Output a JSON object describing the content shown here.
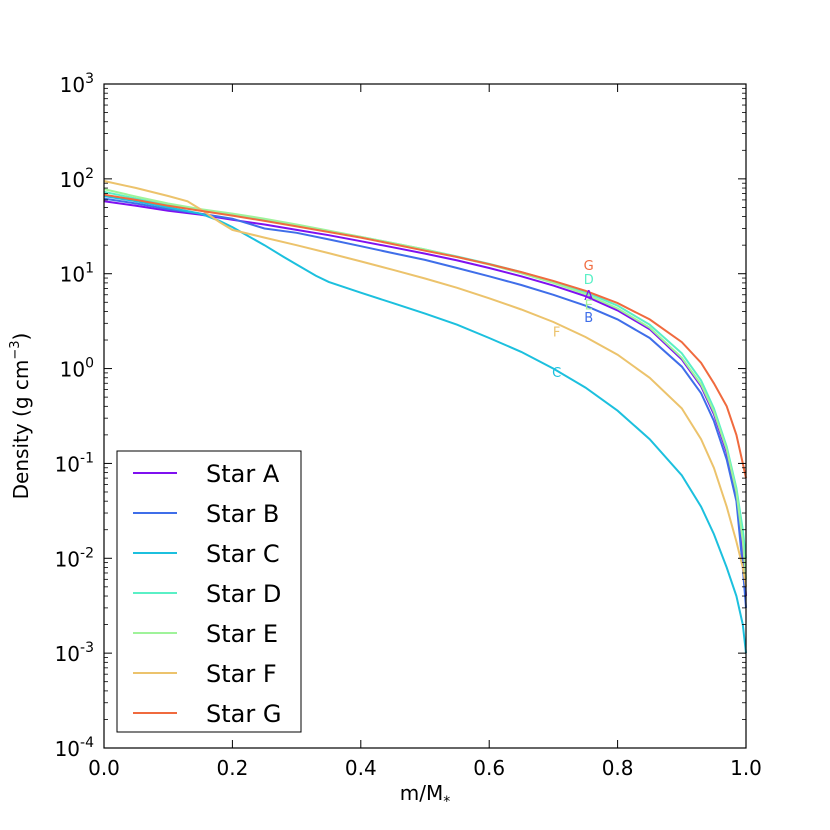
{
  "chart_data": {
    "type": "line",
    "xlabel": "m/M",
    "xlabel_sub": "*",
    "ylabel": "Density (g cm",
    "ylabel_sup": "−3",
    "ylabel_close": ")",
    "x_ticks": [
      "0.0",
      "0.2",
      "0.4",
      "0.6",
      "0.8",
      "1.0"
    ],
    "y_ticks": [
      {
        "base": "10",
        "exp": "-4"
      },
      {
        "base": "10",
        "exp": "-3"
      },
      {
        "base": "10",
        "exp": "-2"
      },
      {
        "base": "10",
        "exp": "-1"
      },
      {
        "base": "10",
        "exp": "0"
      },
      {
        "base": "10",
        "exp": "1"
      },
      {
        "base": "10",
        "exp": "2"
      },
      {
        "base": "10",
        "exp": "3"
      }
    ],
    "xlim": [
      0,
      1
    ],
    "ylim": [
      0.0001,
      1000
    ],
    "yscale": "log",
    "grid": false,
    "legend_position": "bottom-left",
    "series": [
      {
        "name": "Star A",
        "label": "A",
        "color": "#7f10f0",
        "label_at": [
          0.755,
          5.8
        ],
        "points": [
          [
            0,
            58
          ],
          [
            0.05,
            52
          ],
          [
            0.1,
            46
          ],
          [
            0.15,
            42
          ],
          [
            0.2,
            37
          ],
          [
            0.25,
            33
          ],
          [
            0.3,
            29
          ],
          [
            0.35,
            25.5
          ],
          [
            0.4,
            22
          ],
          [
            0.45,
            19
          ],
          [
            0.5,
            16.3
          ],
          [
            0.55,
            13.8
          ],
          [
            0.6,
            11.5
          ],
          [
            0.65,
            9.4
          ],
          [
            0.7,
            7.5
          ],
          [
            0.75,
            5.8
          ],
          [
            0.8,
            4.1
          ],
          [
            0.85,
            2.6
          ],
          [
            0.9,
            1.25
          ],
          [
            0.93,
            0.65
          ],
          [
            0.95,
            0.33
          ],
          [
            0.97,
            0.13
          ],
          [
            0.985,
            0.045
          ],
          [
            0.995,
            0.01
          ],
          [
            1.0,
            0.004
          ]
        ]
      },
      {
        "name": "Star B",
        "label": "B",
        "color": "#3f6ee9",
        "label_at": [
          0.755,
          3.4
        ],
        "points": [
          [
            0,
            62
          ],
          [
            0.05,
            55
          ],
          [
            0.1,
            48
          ],
          [
            0.15,
            43
          ],
          [
            0.2,
            38
          ],
          [
            0.25,
            30
          ],
          [
            0.3,
            27
          ],
          [
            0.35,
            23
          ],
          [
            0.4,
            19.5
          ],
          [
            0.45,
            16.5
          ],
          [
            0.5,
            14
          ],
          [
            0.55,
            11.5
          ],
          [
            0.6,
            9.4
          ],
          [
            0.65,
            7.6
          ],
          [
            0.7,
            6
          ],
          [
            0.75,
            4.6
          ],
          [
            0.8,
            3.3
          ],
          [
            0.85,
            2.1
          ],
          [
            0.9,
            1.05
          ],
          [
            0.93,
            0.55
          ],
          [
            0.95,
            0.28
          ],
          [
            0.97,
            0.11
          ],
          [
            0.985,
            0.04
          ],
          [
            0.995,
            0.008
          ],
          [
            1.0,
            0.003
          ]
        ]
      },
      {
        "name": "Star C",
        "label": "C",
        "color": "#1cc0de",
        "label_at": [
          0.705,
          0.9
        ],
        "points": [
          [
            0,
            66
          ],
          [
            0.05,
            58
          ],
          [
            0.1,
            50
          ],
          [
            0.15,
            43
          ],
          [
            0.18,
            36
          ],
          [
            0.2,
            31
          ],
          [
            0.22,
            26
          ],
          [
            0.25,
            20
          ],
          [
            0.28,
            15
          ],
          [
            0.3,
            12.5
          ],
          [
            0.33,
            9.5
          ],
          [
            0.35,
            8.2
          ],
          [
            0.4,
            6.3
          ],
          [
            0.45,
            4.9
          ],
          [
            0.5,
            3.8
          ],
          [
            0.55,
            2.9
          ],
          [
            0.6,
            2.1
          ],
          [
            0.65,
            1.5
          ],
          [
            0.7,
            1.0
          ],
          [
            0.75,
            0.63
          ],
          [
            0.8,
            0.36
          ],
          [
            0.85,
            0.18
          ],
          [
            0.9,
            0.075
          ],
          [
            0.93,
            0.035
          ],
          [
            0.95,
            0.018
          ],
          [
            0.97,
            0.008
          ],
          [
            0.985,
            0.004
          ],
          [
            0.995,
            0.002
          ],
          [
            1.0,
            0.001
          ]
        ]
      },
      {
        "name": "Star D",
        "label": "D",
        "color": "#5af0c6",
        "label_at": [
          0.755,
          8.6
        ],
        "points": [
          [
            0,
            73
          ],
          [
            0.05,
            62
          ],
          [
            0.1,
            53
          ],
          [
            0.15,
            47
          ],
          [
            0.2,
            42
          ],
          [
            0.25,
            37
          ],
          [
            0.3,
            32
          ],
          [
            0.35,
            28
          ],
          [
            0.4,
            24.5
          ],
          [
            0.45,
            21
          ],
          [
            0.5,
            18
          ],
          [
            0.55,
            15.2
          ],
          [
            0.6,
            12.7
          ],
          [
            0.65,
            10.4
          ],
          [
            0.7,
            8.3
          ],
          [
            0.75,
            6.4
          ],
          [
            0.8,
            4.6
          ],
          [
            0.85,
            2.9
          ],
          [
            0.9,
            1.45
          ],
          [
            0.93,
            0.75
          ],
          [
            0.95,
            0.38
          ],
          [
            0.97,
            0.15
          ],
          [
            0.985,
            0.055
          ],
          [
            0.995,
            0.02
          ],
          [
            1.0,
            0.01
          ]
        ]
      },
      {
        "name": "Star E",
        "label": "E",
        "color": "#9ff39a",
        "label_at": [
          0.755,
          4.6
        ],
        "points": [
          [
            0,
            78
          ],
          [
            0.05,
            65
          ],
          [
            0.1,
            55
          ],
          [
            0.15,
            48
          ],
          [
            0.2,
            43
          ],
          [
            0.25,
            38
          ],
          [
            0.3,
            33
          ],
          [
            0.35,
            28.5
          ],
          [
            0.4,
            24.5
          ],
          [
            0.45,
            21
          ],
          [
            0.5,
            18
          ],
          [
            0.55,
            15
          ],
          [
            0.6,
            12.5
          ],
          [
            0.65,
            10.1
          ],
          [
            0.7,
            8
          ],
          [
            0.75,
            6.1
          ],
          [
            0.8,
            4.3
          ],
          [
            0.85,
            2.7
          ],
          [
            0.9,
            1.3
          ],
          [
            0.93,
            0.68
          ],
          [
            0.95,
            0.35
          ],
          [
            0.97,
            0.14
          ],
          [
            0.985,
            0.05
          ],
          [
            0.995,
            0.015
          ],
          [
            1.0,
            0.006
          ]
        ]
      },
      {
        "name": "Star F",
        "label": "F",
        "color": "#ecc36c",
        "label_at": [
          0.705,
          2.4
        ],
        "points": [
          [
            0,
            95
          ],
          [
            0.05,
            80
          ],
          [
            0.1,
            66
          ],
          [
            0.13,
            58
          ],
          [
            0.15,
            48
          ],
          [
            0.18,
            35
          ],
          [
            0.2,
            29
          ],
          [
            0.25,
            24
          ],
          [
            0.3,
            20
          ],
          [
            0.35,
            16.5
          ],
          [
            0.4,
            13.5
          ],
          [
            0.45,
            11
          ],
          [
            0.5,
            8.9
          ],
          [
            0.55,
            7.1
          ],
          [
            0.6,
            5.5
          ],
          [
            0.65,
            4.2
          ],
          [
            0.7,
            3.1
          ],
          [
            0.75,
            2.15
          ],
          [
            0.8,
            1.4
          ],
          [
            0.85,
            0.8
          ],
          [
            0.9,
            0.38
          ],
          [
            0.93,
            0.18
          ],
          [
            0.95,
            0.09
          ],
          [
            0.97,
            0.035
          ],
          [
            0.985,
            0.015
          ],
          [
            0.995,
            0.008
          ],
          [
            1.0,
            0.005
          ]
        ]
      },
      {
        "name": "Star G",
        "label": "G",
        "color": "#f06a3e",
        "label_at": [
          0.755,
          12.0
        ],
        "points": [
          [
            0,
            68
          ],
          [
            0.05,
            60
          ],
          [
            0.1,
            52
          ],
          [
            0.15,
            46
          ],
          [
            0.2,
            41
          ],
          [
            0.25,
            36
          ],
          [
            0.3,
            31.5
          ],
          [
            0.35,
            27.5
          ],
          [
            0.4,
            24
          ],
          [
            0.45,
            20.5
          ],
          [
            0.5,
            17.5
          ],
          [
            0.55,
            15
          ],
          [
            0.6,
            12.6
          ],
          [
            0.65,
            10.4
          ],
          [
            0.7,
            8.4
          ],
          [
            0.75,
            6.6
          ],
          [
            0.8,
            4.9
          ],
          [
            0.85,
            3.3
          ],
          [
            0.9,
            1.9
          ],
          [
            0.93,
            1.15
          ],
          [
            0.95,
            0.7
          ],
          [
            0.97,
            0.4
          ],
          [
            0.985,
            0.2
          ],
          [
            0.995,
            0.1
          ],
          [
            1.0,
            0.07
          ]
        ]
      }
    ]
  }
}
